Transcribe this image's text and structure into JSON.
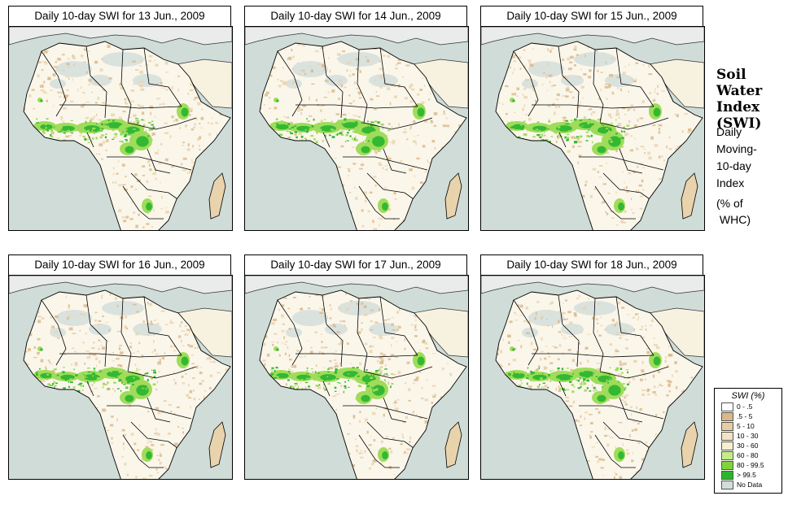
{
  "panels": [
    {
      "title": "Daily 10-day SWI for  13 Jun., 2009"
    },
    {
      "title": "Daily 10-day SWI for  14 Jun., 2009"
    },
    {
      "title": "Daily 10-day SWI for  15 Jun., 2009"
    },
    {
      "title": "Daily 10-day SWI for  16 Jun., 2009"
    },
    {
      "title": "Daily 10-day SWI for  17 Jun., 2009"
    },
    {
      "title": "Daily 10-day SWI for  18 Jun., 2009"
    }
  ],
  "side": {
    "title_lines": [
      "Soil",
      "Water",
      "Index",
      "(SWI)"
    ],
    "subtitle_lines": [
      "Daily",
      "Moving-",
      "10-day",
      "Index"
    ],
    "unit_lines": [
      "(% of",
      " WHC)"
    ]
  },
  "legend": {
    "title": "SWI (%)",
    "items": [
      {
        "label": "0 - .5",
        "color": "#ffffff"
      },
      {
        "label": ".5 - 5",
        "color": "#d9b88a"
      },
      {
        "label": "5 - 10",
        "color": "#e6cda3"
      },
      {
        "label": "10 - 30",
        "color": "#f2e3c4"
      },
      {
        "label": "30 - 60",
        "color": "#f6f0cf"
      },
      {
        "label": "60 - 80",
        "color": "#c5ec86"
      },
      {
        "label": "80 - 99.5",
        "color": "#7fd43a"
      },
      {
        "label": "> 99.5",
        "color": "#2bb52b"
      },
      {
        "label": "No Data",
        "color": "#d3dedc"
      }
    ]
  },
  "colors": {
    "ocean": "#cfdcd7",
    "land": "#fbf6ea",
    "tan": "#e9d3ad",
    "desert_nodata": "#d3dedc",
    "green_light": "#9fdc5a",
    "green_dark": "#33b833",
    "border": "#000000"
  }
}
